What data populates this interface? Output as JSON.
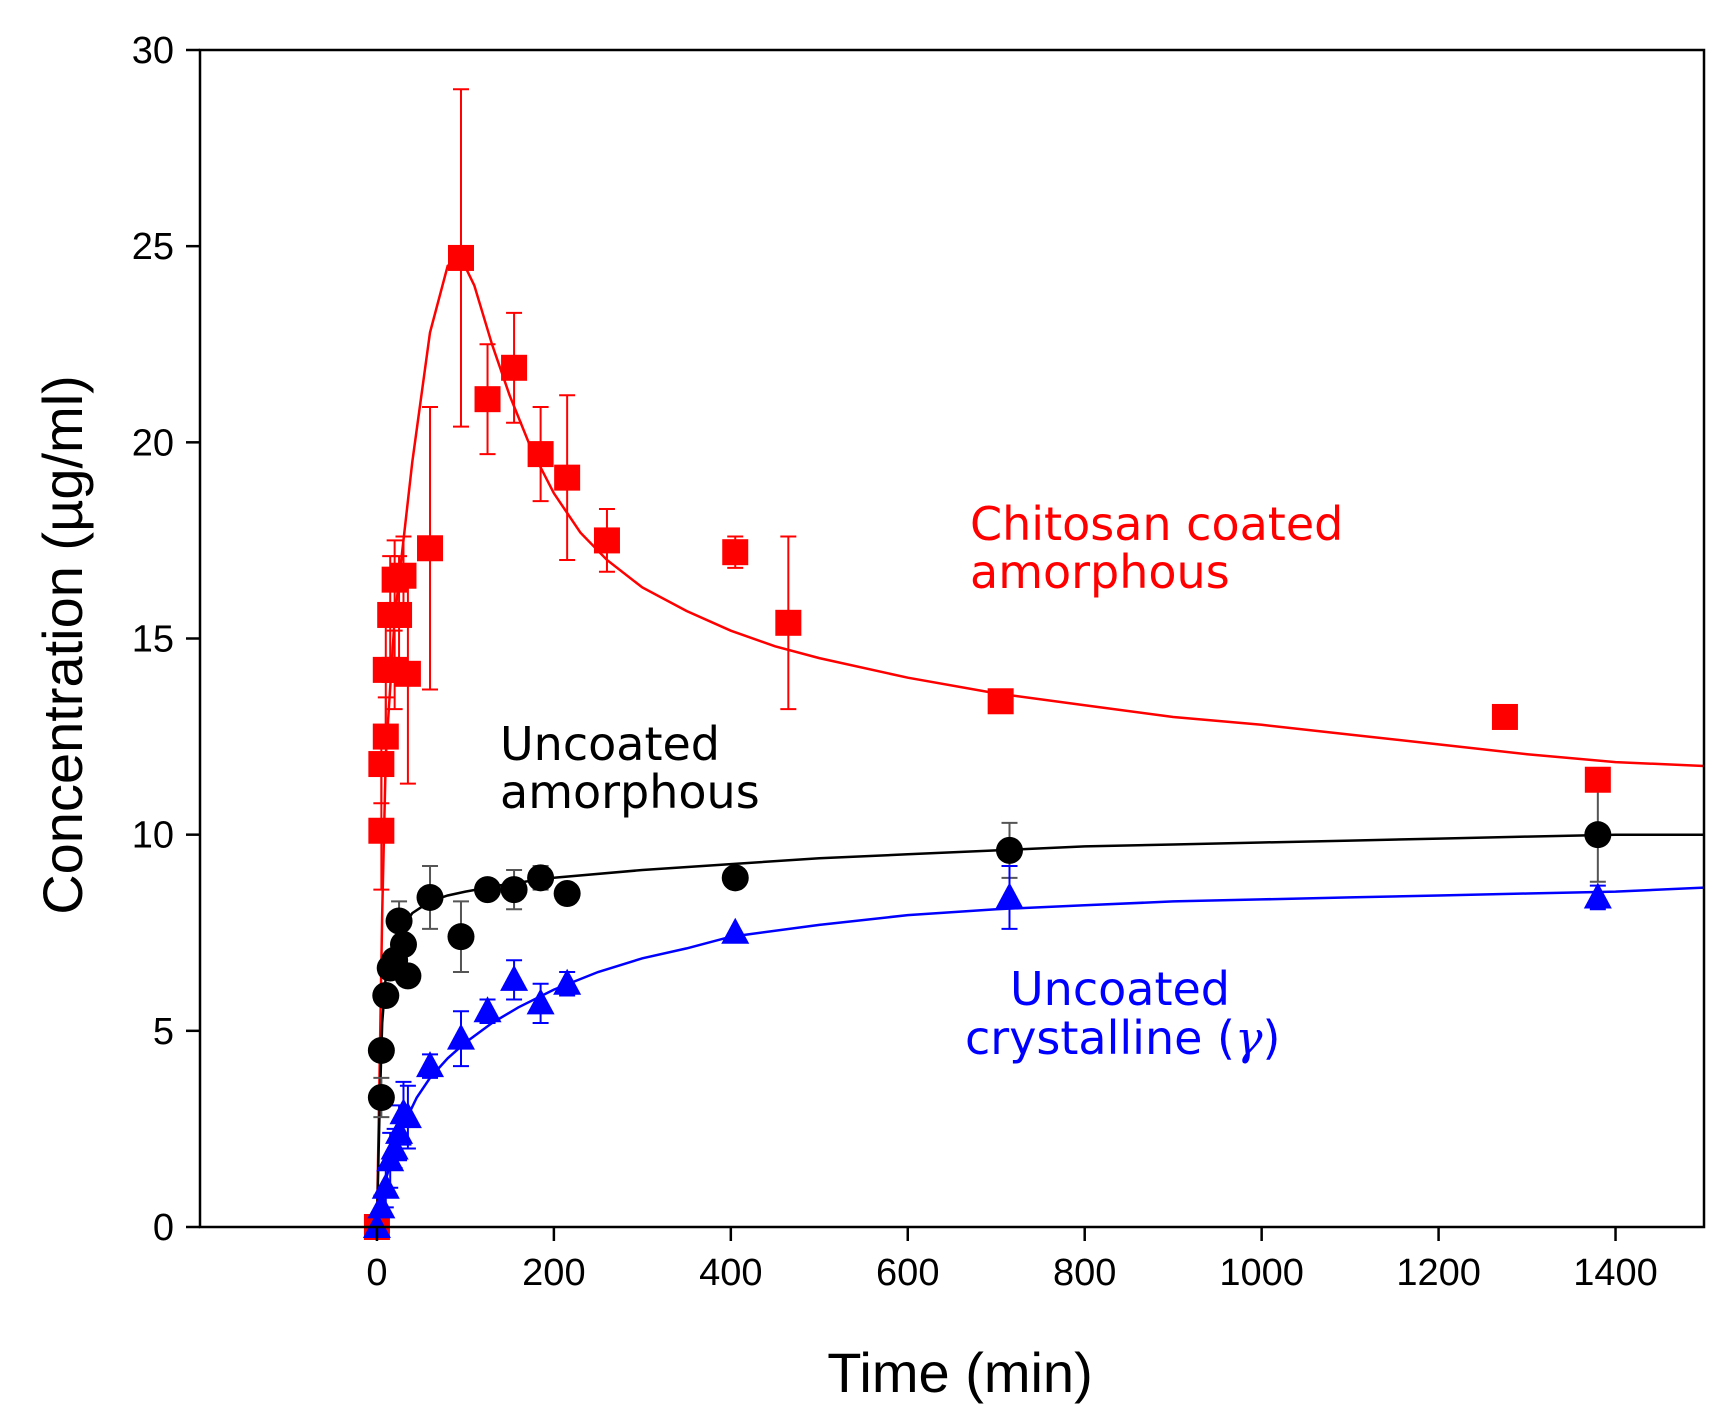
{
  "chart_data": {
    "type": "scatter",
    "title": "",
    "xlabel": "Time (min)",
    "ylabel": "Concentration (µg/ml)",
    "xlim": [
      -200,
      1500
    ],
    "ylim": [
      0,
      30
    ],
    "x_ticks": [
      0,
      200,
      400,
      600,
      800,
      1000,
      1200,
      1400
    ],
    "y_ticks": [
      0,
      5,
      10,
      15,
      20,
      25,
      30
    ],
    "grid": false,
    "legend": "none (series labelled by in-plot text annotations)",
    "series": [
      {
        "name": "Chitosan coated amorphous",
        "label_lines": [
          "Chitosan coated",
          "amorphous"
        ],
        "color": "#ff0000",
        "marker": "square",
        "points": [
          {
            "x": 0,
            "y": 0,
            "err": 0
          },
          {
            "x": 5,
            "y": 10.1,
            "err": 1.5
          },
          {
            "x": 5,
            "y": 11.8,
            "err": 1.0
          },
          {
            "x": 10,
            "y": 12.5,
            "err": 1.0
          },
          {
            "x": 10,
            "y": 14.2,
            "err": 1.5
          },
          {
            "x": 15,
            "y": 15.6,
            "err": 1.5
          },
          {
            "x": 20,
            "y": 14.2,
            "err": 1.0
          },
          {
            "x": 20,
            "y": 16.5,
            "err": 1.0
          },
          {
            "x": 25,
            "y": 15.6,
            "err": 1.5
          },
          {
            "x": 30,
            "y": 16.6,
            "err": 1.0
          },
          {
            "x": 35,
            "y": 14.1,
            "err": 2.8
          },
          {
            "x": 60,
            "y": 17.3,
            "err": 3.6
          },
          {
            "x": 95,
            "y": 24.7,
            "err": 4.3
          },
          {
            "x": 125,
            "y": 21.1,
            "err": 1.4
          },
          {
            "x": 155,
            "y": 21.9,
            "err": 1.4
          },
          {
            "x": 185,
            "y": 19.7,
            "err": 1.2
          },
          {
            "x": 215,
            "y": 19.1,
            "err": 2.1
          },
          {
            "x": 260,
            "y": 17.5,
            "err": 0.8
          },
          {
            "x": 405,
            "y": 17.2,
            "err": 0.4
          },
          {
            "x": 465,
            "y": 15.4,
            "err": 2.2
          },
          {
            "x": 705,
            "y": 13.4,
            "err": 0.3
          },
          {
            "x": 1275,
            "y": 13.0,
            "err": 0
          },
          {
            "x": 1380,
            "y": 11.4,
            "err": 0
          }
        ],
        "fit": [
          [
            0,
            0
          ],
          [
            3,
            4
          ],
          [
            6,
            8
          ],
          [
            10,
            12
          ],
          [
            20,
            15.5
          ],
          [
            40,
            19.5
          ],
          [
            60,
            22.8
          ],
          [
            80,
            24.5
          ],
          [
            95,
            24.7
          ],
          [
            110,
            24.0
          ],
          [
            130,
            22.5
          ],
          [
            150,
            21.2
          ],
          [
            175,
            19.8
          ],
          [
            200,
            18.7
          ],
          [
            230,
            17.7
          ],
          [
            260,
            17.0
          ],
          [
            300,
            16.3
          ],
          [
            350,
            15.7
          ],
          [
            400,
            15.2
          ],
          [
            450,
            14.8
          ],
          [
            500,
            14.5
          ],
          [
            600,
            14.0
          ],
          [
            700,
            13.6
          ],
          [
            800,
            13.3
          ],
          [
            900,
            13.0
          ],
          [
            1000,
            12.8
          ],
          [
            1100,
            12.55
          ],
          [
            1200,
            12.3
          ],
          [
            1300,
            12.05
          ],
          [
            1400,
            11.85
          ],
          [
            1500,
            11.75
          ]
        ]
      },
      {
        "name": "Uncoated amorphous",
        "label_lines": [
          "Uncoated",
          "amorphous"
        ],
        "color": "#000000",
        "marker": "circle",
        "points": [
          {
            "x": 5,
            "y": 3.3,
            "err": 0.5
          },
          {
            "x": 5,
            "y": 4.5,
            "err": 0
          },
          {
            "x": 10,
            "y": 5.9,
            "err": 0
          },
          {
            "x": 15,
            "y": 6.6,
            "err": 0
          },
          {
            "x": 20,
            "y": 6.8,
            "err": 0
          },
          {
            "x": 25,
            "y": 7.8,
            "err": 0.5
          },
          {
            "x": 30,
            "y": 7.2,
            "err": 0.5
          },
          {
            "x": 35,
            "y": 6.4,
            "err": 0
          },
          {
            "x": 60,
            "y": 8.4,
            "err": 0.8
          },
          {
            "x": 95,
            "y": 7.4,
            "err": 0.9
          },
          {
            "x": 125,
            "y": 8.6,
            "err": 0
          },
          {
            "x": 155,
            "y": 8.6,
            "err": 0.5
          },
          {
            "x": 185,
            "y": 8.9,
            "err": 0.3
          },
          {
            "x": 215,
            "y": 8.5,
            "err": 0
          },
          {
            "x": 405,
            "y": 8.9,
            "err": 0
          },
          {
            "x": 715,
            "y": 9.6,
            "err": 0.7
          },
          {
            "x": 1380,
            "y": 10.0,
            "err": 1.2
          }
        ],
        "fit": [
          [
            0,
            0
          ],
          [
            3,
            3
          ],
          [
            6,
            5.2
          ],
          [
            10,
            6.4
          ],
          [
            20,
            7.3
          ],
          [
            40,
            8.0
          ],
          [
            60,
            8.3
          ],
          [
            80,
            8.45
          ],
          [
            100,
            8.55
          ],
          [
            150,
            8.75
          ],
          [
            200,
            8.9
          ],
          [
            300,
            9.1
          ],
          [
            400,
            9.25
          ],
          [
            500,
            9.4
          ],
          [
            600,
            9.5
          ],
          [
            700,
            9.6
          ],
          [
            800,
            9.7
          ],
          [
            900,
            9.75
          ],
          [
            1000,
            9.8
          ],
          [
            1100,
            9.85
          ],
          [
            1200,
            9.9
          ],
          [
            1300,
            9.95
          ],
          [
            1400,
            10.0
          ],
          [
            1500,
            10.0
          ]
        ]
      },
      {
        "name": "Uncoated crystalline (γ)",
        "label_lines": [
          "Uncoated",
          "crystalline (",
          "γ",
          ")"
        ],
        "color": "#0000ff",
        "marker": "triangle",
        "points": [
          {
            "x": 0,
            "y": 0,
            "err": 0
          },
          {
            "x": 5,
            "y": 0.5,
            "err": 0.3
          },
          {
            "x": 10,
            "y": 1.0,
            "err": 0.5
          },
          {
            "x": 15,
            "y": 1.7,
            "err": 0.7
          },
          {
            "x": 20,
            "y": 2.0,
            "err": 0.5
          },
          {
            "x": 25,
            "y": 2.4,
            "err": 0.7
          },
          {
            "x": 30,
            "y": 2.9,
            "err": 0.8
          },
          {
            "x": 35,
            "y": 2.8,
            "err": 0.8
          },
          {
            "x": 60,
            "y": 4.1,
            "err": 0.3
          },
          {
            "x": 95,
            "y": 4.8,
            "err": 0.7
          },
          {
            "x": 125,
            "y": 5.5,
            "err": 0.3
          },
          {
            "x": 155,
            "y": 6.3,
            "err": 0.5
          },
          {
            "x": 185,
            "y": 5.7,
            "err": 0.5
          },
          {
            "x": 215,
            "y": 6.2,
            "err": 0.3
          },
          {
            "x": 405,
            "y": 7.5,
            "err": 0
          },
          {
            "x": 715,
            "y": 8.4,
            "err": 0.8
          },
          {
            "x": 1380,
            "y": 8.4,
            "err": 0.3
          }
        ],
        "fit": [
          [
            0,
            0
          ],
          [
            5,
            0.6
          ],
          [
            10,
            1.2
          ],
          [
            20,
            2.0
          ],
          [
            30,
            2.6
          ],
          [
            45,
            3.3
          ],
          [
            60,
            3.8
          ],
          [
            80,
            4.3
          ],
          [
            100,
            4.7
          ],
          [
            130,
            5.2
          ],
          [
            160,
            5.6
          ],
          [
            200,
            6.05
          ],
          [
            250,
            6.5
          ],
          [
            300,
            6.85
          ],
          [
            350,
            7.1
          ],
          [
            400,
            7.4
          ],
          [
            500,
            7.7
          ],
          [
            600,
            7.95
          ],
          [
            700,
            8.1
          ],
          [
            800,
            8.2
          ],
          [
            900,
            8.3
          ],
          [
            1000,
            8.35
          ],
          [
            1100,
            8.4
          ],
          [
            1200,
            8.45
          ],
          [
            1300,
            8.5
          ],
          [
            1400,
            8.55
          ],
          [
            1500,
            8.65
          ]
        ]
      }
    ]
  }
}
